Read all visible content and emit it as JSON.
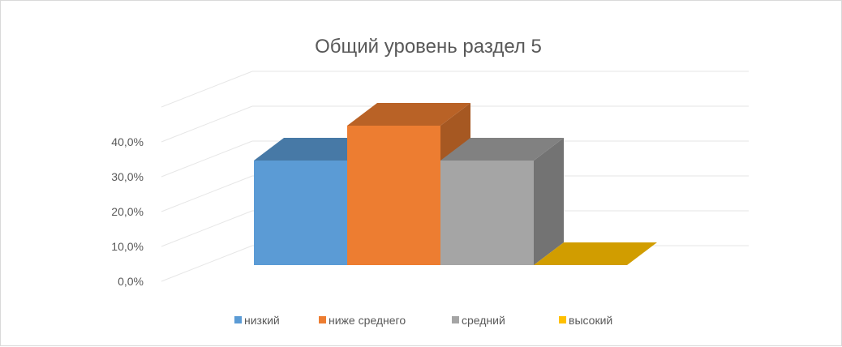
{
  "chart_data": {
    "type": "bar",
    "style": "3d-column",
    "title": "Общий уровень раздел 5",
    "xlabel": "",
    "ylabel": "",
    "categories": [
      "низкий",
      "ниже среднего",
      "средний",
      "высокий"
    ],
    "series": [
      {
        "values": [
          30.0,
          40.0,
          30.0,
          0.0
        ]
      }
    ],
    "colors": [
      "#5B9BD5",
      "#ED7D31",
      "#A5A5A5",
      "#FFC000"
    ],
    "ylim": [
      0,
      50
    ],
    "yticks": [
      "0,0%",
      "10,0%",
      "20,0%",
      "30,0%",
      "40,0%"
    ],
    "ytick_values": [
      0,
      10,
      20,
      30,
      40
    ],
    "grid": true,
    "legend": {
      "position": "bottom",
      "entries": [
        "низкий",
        "ниже среднего",
        "средний",
        "высокий"
      ]
    }
  }
}
